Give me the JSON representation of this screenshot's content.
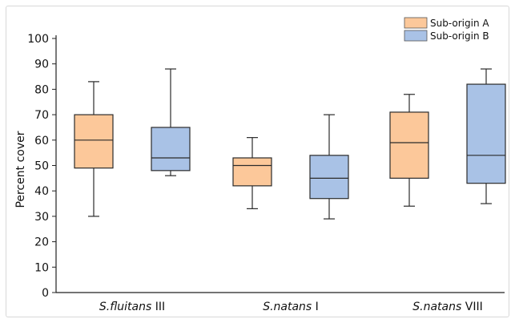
{
  "chart_data": {
    "type": "box",
    "ylabel": "Percent cover",
    "xlabel": "",
    "title": "",
    "ylim": [
      0,
      100
    ],
    "yticks": [
      0,
      10,
      20,
      30,
      40,
      50,
      60,
      70,
      80,
      90,
      100
    ],
    "grid": false,
    "legend_position": "top-right",
    "categories": [
      {
        "italic": "S.fluitans",
        "suffix": " III"
      },
      {
        "italic": "S.natans",
        "suffix": " I"
      },
      {
        "italic": "S.natans",
        "suffix": " VIII"
      }
    ],
    "series": [
      {
        "name": "Sub-origin A",
        "color": "#fcc89a",
        "stroke": "#2b2b2b",
        "boxes": [
          {
            "min": 30,
            "q1": 49,
            "median": 60,
            "q3": 70,
            "max": 83
          },
          {
            "min": 33,
            "q1": 42,
            "median": 50,
            "q3": 53,
            "max": 61
          },
          {
            "min": 34,
            "q1": 45,
            "median": 59,
            "q3": 71,
            "max": 78
          }
        ]
      },
      {
        "name": "Sub-origin B",
        "color": "#a9c2e6",
        "stroke": "#2b2b2b",
        "boxes": [
          {
            "min": 46,
            "q1": 48,
            "median": 53,
            "q3": 65,
            "max": 88
          },
          {
            "min": 29,
            "q1": 37,
            "median": 45,
            "q3": 54,
            "max": 70
          },
          {
            "min": 35,
            "q1": 43,
            "median": 54,
            "q3": 82,
            "max": 88
          }
        ]
      }
    ]
  }
}
